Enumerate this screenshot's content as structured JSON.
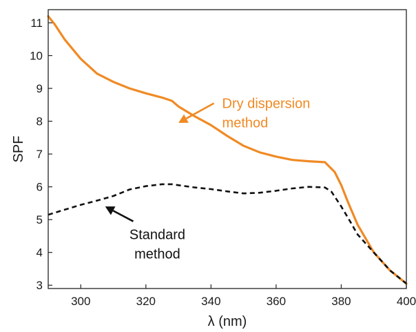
{
  "chart_data": {
    "type": "line",
    "xlabel": "λ (nm)",
    "ylabel": "SPF",
    "xlim": [
      290,
      400
    ],
    "ylim": [
      2.9,
      11.4
    ],
    "xticks": [
      300,
      320,
      340,
      360,
      380,
      400
    ],
    "yticks": [
      3,
      4,
      5,
      6,
      7,
      8,
      9,
      10,
      11
    ],
    "grid": false,
    "series": [
      {
        "name": "Dry dispersion method",
        "color": "#f08a24",
        "style": "solid",
        "x": [
          290,
          292,
          295,
          300,
          305,
          310,
          315,
          320,
          325,
          328,
          330,
          335,
          340,
          345,
          350,
          355,
          360,
          365,
          370,
          375,
          376,
          378,
          380,
          382,
          385,
          390,
          395,
          400
        ],
        "y": [
          11.2,
          10.95,
          10.5,
          9.9,
          9.45,
          9.2,
          9.0,
          8.85,
          8.72,
          8.62,
          8.45,
          8.15,
          7.88,
          7.55,
          7.25,
          7.05,
          6.92,
          6.82,
          6.78,
          6.75,
          6.65,
          6.45,
          6.05,
          5.55,
          4.85,
          4.0,
          3.45,
          3.05
        ]
      },
      {
        "name": "Standard method",
        "color": "#111111",
        "style": "dashed",
        "x": [
          290,
          295,
          300,
          305,
          310,
          315,
          320,
          325,
          328,
          330,
          335,
          340,
          345,
          350,
          355,
          360,
          365,
          370,
          375,
          377,
          380,
          383,
          385,
          390,
          395,
          400
        ],
        "y": [
          5.15,
          5.3,
          5.45,
          5.58,
          5.72,
          5.92,
          6.02,
          6.08,
          6.08,
          6.05,
          5.98,
          5.93,
          5.86,
          5.8,
          5.82,
          5.88,
          5.95,
          6.0,
          5.98,
          5.85,
          5.4,
          4.9,
          4.55,
          4.0,
          3.45,
          3.05
        ]
      }
    ],
    "annotations": [
      {
        "lines": [
          "Dry dispersion",
          "method"
        ],
        "color": "#f08a24",
        "arrow_to": [
          330,
          7.95
        ],
        "text_at": [
          343,
          8.4
        ]
      },
      {
        "lines": [
          "Standard",
          "method"
        ],
        "color": "#111111",
        "arrow_to": [
          307.5,
          5.4
        ],
        "text_at": [
          314,
          4.4
        ]
      }
    ]
  }
}
